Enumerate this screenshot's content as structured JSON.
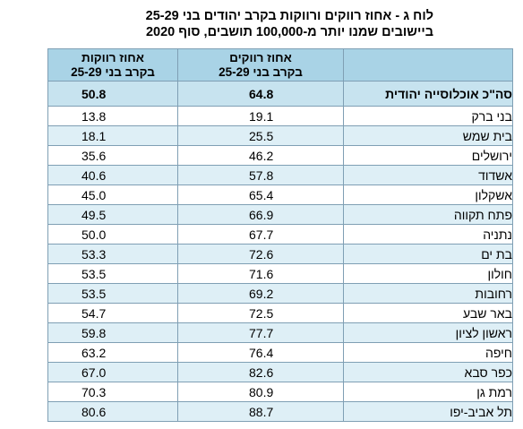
{
  "title": {
    "line1": "לוח ג - אחוז רווקים ורווקות בקרב יהודים בני 25-29",
    "line2": "ביישובים שמנו יותר מ-100,000 תושבים, סוף 2020"
  },
  "table": {
    "headers": {
      "city": "",
      "men_line1": "אחוז רווקים",
      "men_line2": "בקרב בני 25-29",
      "women_line1": "אחוז רווקות",
      "women_line2": "בקרב בני 25-29"
    },
    "total": {
      "city": "סה\"כ אוכלוסייה יהודית",
      "men": "64.8",
      "women": "50.8"
    },
    "rows": [
      {
        "city": "בני ברק",
        "men": "19.1",
        "women": "13.8"
      },
      {
        "city": "בית שמש",
        "men": "25.5",
        "women": "18.1"
      },
      {
        "city": "ירושלים",
        "men": "46.2",
        "women": "35.6"
      },
      {
        "city": "אשדוד",
        "men": "57.8",
        "women": "40.6"
      },
      {
        "city": "אשקלון",
        "men": "65.4",
        "women": "45.0"
      },
      {
        "city": "פתח תקווה",
        "men": "66.9",
        "women": "49.5"
      },
      {
        "city": "נתניה",
        "men": "67.7",
        "women": "50.0"
      },
      {
        "city": "בת ים",
        "men": "72.6",
        "women": "53.3"
      },
      {
        "city": "חולון",
        "men": "71.6",
        "women": "53.5"
      },
      {
        "city": "רחובות",
        "men": "69.2",
        "women": "53.5"
      },
      {
        "city": "באר שבע",
        "men": "72.5",
        "women": "54.7"
      },
      {
        "city": "ראשון לציון",
        "men": "77.7",
        "women": "59.8"
      },
      {
        "city": "חיפה",
        "men": "76.4",
        "women": "63.2"
      },
      {
        "city": "כפר סבא",
        "men": "82.6",
        "women": "67.0"
      },
      {
        "city": "רמת גן",
        "men": "80.9",
        "women": "70.3"
      },
      {
        "city": "תל אביב-יפו",
        "men": "88.7",
        "women": "80.6"
      }
    ]
  },
  "colors": {
    "header_bg": "#a9d3e6",
    "total_bg": "#c7e3ef",
    "alt_row_bg": "#deeff6",
    "border": "#7f9fb4"
  }
}
